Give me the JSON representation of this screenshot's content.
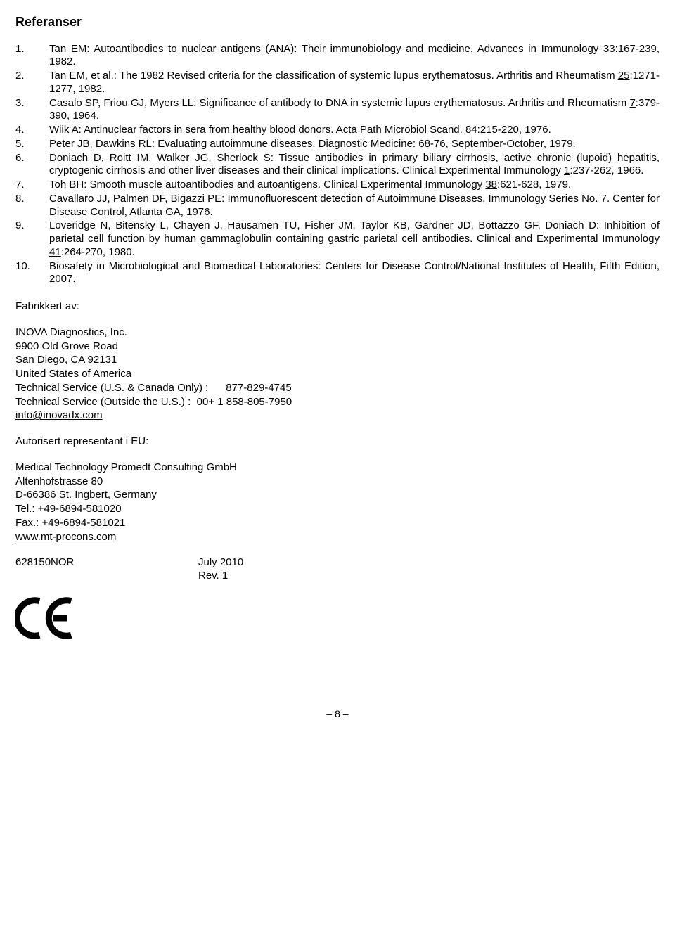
{
  "title": "Referanser",
  "references": [
    {
      "num": "1.",
      "text": "Tan EM: Autoantibodies to nuclear antigens (ANA): Their immunobiology and medicine. Advances in Immunology <u>33</u>:167-239, 1982."
    },
    {
      "num": "2.",
      "text": "Tan EM, et al.: The 1982 Revised criteria for the classification of systemic lupus erythematosus. Arthritis and Rheumatism <u>25</u>:1271-1277, 1982."
    },
    {
      "num": "3.",
      "text": "Casalo SP, Friou GJ, Myers LL: Significance of antibody to DNA in systemic lupus erythematosus. Arthritis and Rheumatism <u>7</u>:379-390, 1964."
    },
    {
      "num": "4.",
      "text": "Wiik A: Antinuclear factors in sera from healthy blood donors. Acta Path Microbiol Scand. <u>84</u>:215-220, 1976."
    },
    {
      "num": "5.",
      "text": "Peter JB, Dawkins RL: Evaluating autoimmune diseases. Diagnostic Medicine: 68-76, September-October, 1979."
    },
    {
      "num": "6.",
      "text": "Doniach D, Roitt IM, Walker JG, Sherlock S: Tissue antibodies in primary biliary cirrhosis, active chronic (lupoid) hepatitis, cryptogenic cirrhosis and other liver diseases and their clinical implications. Clinical Experimental Immunology <u>1</u>:237-262, 1966."
    },
    {
      "num": "7.",
      "text": "Toh BH: Smooth muscle autoantibodies and autoantigens. Clinical Experimental Immunology <u>38</u>:621-628, 1979."
    },
    {
      "num": "8.",
      "text": "Cavallaro JJ, Palmen DF, Bigazzi PE: Immunofluorescent detection of Autoimmune Diseases, Immunology Series No. 7. Center for Disease Control, Atlanta GA, 1976."
    },
    {
      "num": "9.",
      "text": "Loveridge N, Bitensky L, Chayen J, Hausamen TU, Fisher JM, Taylor KB, Gardner JD, Bottazzo GF, Doniach D: Inhibition of parietal cell function by human gammaglobulin containing gastric parietal cell antibodies. Clinical and Experimental Immunology <u>41</u>:264-270, 1980."
    },
    {
      "num": "10.",
      "text": "Biosafety in Microbiological and Biomedical Laboratories: Centers for Disease Control/National Institutes of Health, Fifth Edition, 2007."
    }
  ],
  "manufacturer_label": "Fabrikkert av:",
  "manufacturer": {
    "name": "INOVA Diagnostics, Inc.",
    "street": "9900 Old Grove Road",
    "city": "San Diego, CA 92131",
    "country": "United States of America",
    "tech_us": "Technical Service (U.S. & Canada Only) :      877-829-4745",
    "tech_intl": "Technical Service (Outside the U.S.) :  00+ 1 858-805-7950",
    "email": "info@inovadx.com"
  },
  "rep_label": "Autorisert representant i EU:",
  "rep": {
    "name": "Medical Technology Promedt Consulting GmbH",
    "street": "Altenhofstrasse 80",
    "city": "D-66386 St. Ingbert, Germany",
    "tel": "Tel.: +49-6894-581020",
    "fax": "Fax.: +49-6894-581021",
    "web": "www.mt-procons.com"
  },
  "doc_code": "628150NOR",
  "doc_date": "July 2010",
  "doc_rev": "Rev. 1",
  "page_number": "– 8 –"
}
